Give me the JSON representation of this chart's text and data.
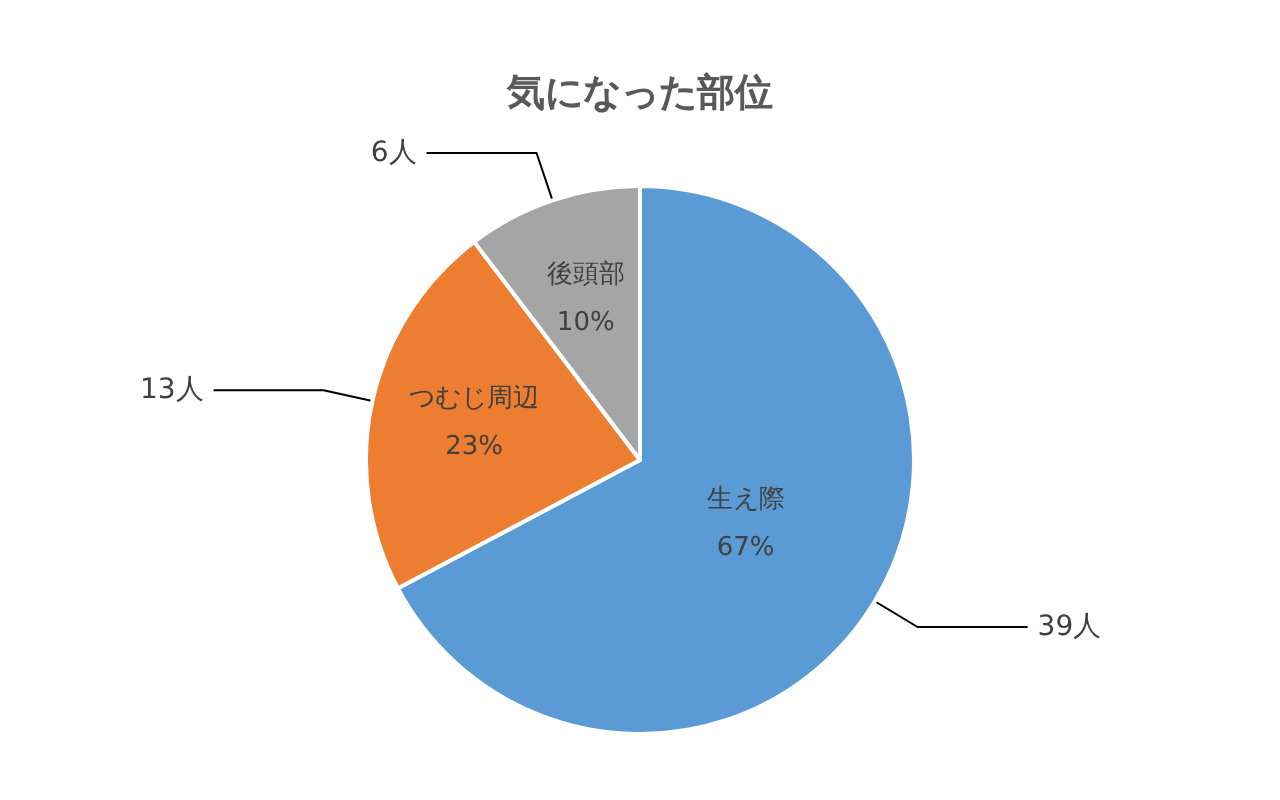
{
  "chart_data": {
    "type": "pie",
    "title": "気になった部位",
    "categories": [
      "生え際",
      "つむじ周辺",
      "後頭部"
    ],
    "values": [
      39,
      13,
      6
    ],
    "value_labels": [
      "39人",
      "13人",
      "6人"
    ],
    "colors": [
      "#5b9bd5",
      "#ed7d31",
      "#a5a5a5"
    ],
    "annotations": [
      "67%",
      "23%",
      "10%"
    ],
    "legend": false
  }
}
